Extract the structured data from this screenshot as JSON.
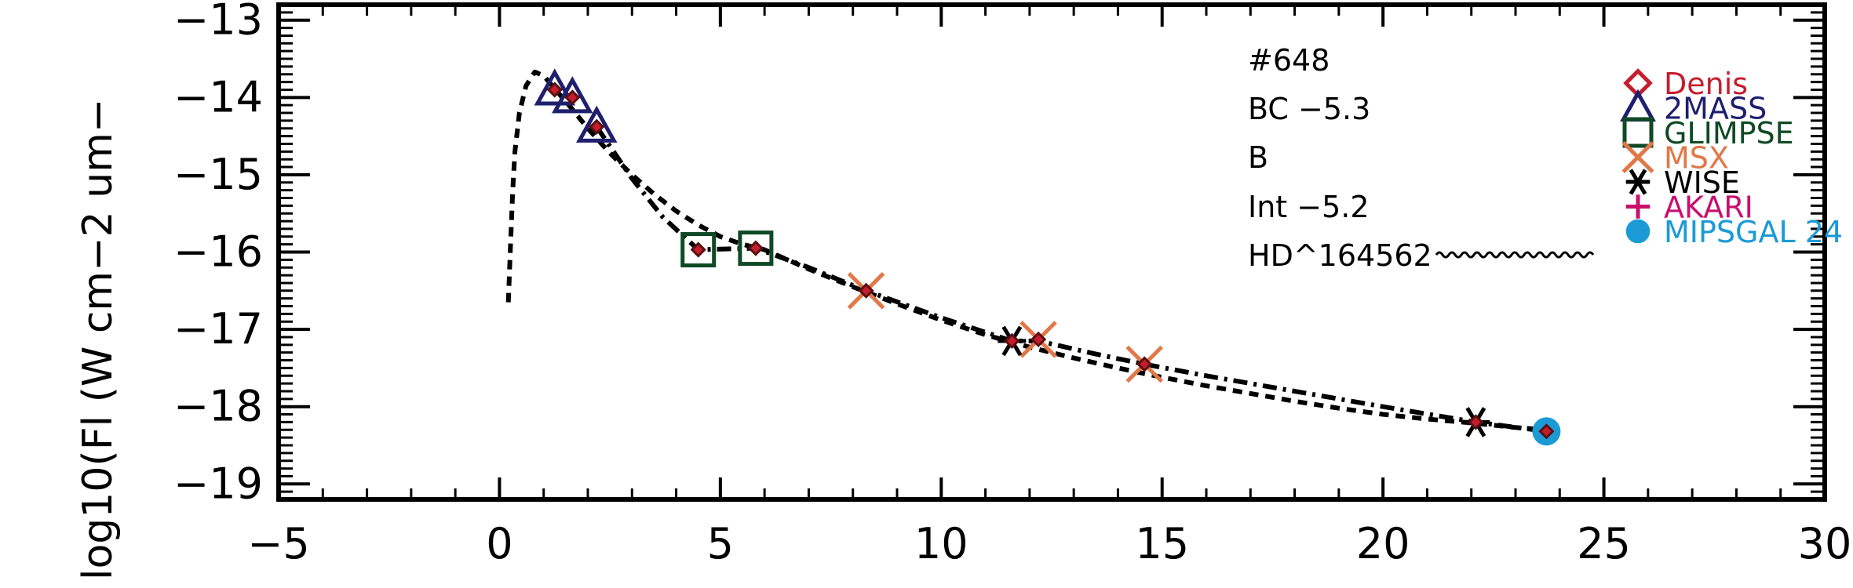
{
  "chart_data": {
    "type": "scatter",
    "title": "",
    "xlabel": "",
    "ylabel": "log10(Fl (W cm−2 um−",
    "xlim": [
      -5,
      30
    ],
    "ylim": [
      -19.2,
      -12.8
    ],
    "x_ticks": [
      -5,
      0,
      5,
      10,
      15,
      20,
      25,
      30
    ],
    "x_tick_labels": [
      "−5",
      "0",
      "5",
      "10",
      "15",
      "20",
      "25",
      "30"
    ],
    "y_ticks": [
      -13,
      -14,
      -15,
      -16,
      -17,
      -18,
      -19
    ],
    "y_tick_labels": [
      "−13",
      "−14",
      "−15",
      "−16",
      "−17",
      "−18",
      "−19"
    ],
    "grid": false,
    "legend_position": "top-right",
    "annotations": [
      {
        "id": "star-id",
        "text": "#648"
      },
      {
        "id": "bc",
        "text": "BC −5.3"
      },
      {
        "id": "band",
        "text": "B"
      },
      {
        "id": "int",
        "text": "Int −5.2"
      },
      {
        "id": "star-name",
        "text": "HD^164562"
      }
    ],
    "model_curve": {
      "style": "dashed",
      "x": [
        0.2,
        0.25,
        0.3,
        0.35,
        0.45,
        0.6,
        0.8,
        1.0,
        1.3,
        1.6,
        2.0,
        2.5,
        3.0,
        3.5,
        4.0,
        4.5,
        5.0,
        5.5,
        6.0,
        7.0,
        8.0,
        9.0,
        10.0,
        11.0,
        12.0,
        13.0,
        14.0,
        15.0,
        16.0,
        17.0,
        18.0,
        19.0,
        20.0,
        21.0,
        22.0,
        23.0,
        23.7
      ],
      "y": [
        -16.65,
        -15.9,
        -15.2,
        -14.7,
        -14.2,
        -13.85,
        -13.67,
        -13.72,
        -13.92,
        -14.12,
        -14.4,
        -14.72,
        -15.0,
        -15.25,
        -15.47,
        -15.65,
        -15.8,
        -15.9,
        -15.97,
        -16.22,
        -16.45,
        -16.67,
        -16.88,
        -17.07,
        -17.23,
        -17.37,
        -17.5,
        -17.62,
        -17.73,
        -17.83,
        -17.93,
        -18.02,
        -18.1,
        -18.16,
        -18.21,
        -18.27,
        -18.3
      ]
    },
    "fit_curve": {
      "style": "dash-dot",
      "x": [
        2.2,
        3.0,
        3.7,
        4.5,
        5.8,
        7.0,
        8.3,
        10.0,
        11.6,
        12.2,
        13.5,
        14.6,
        16.0,
        18.0,
        20.0,
        22.1,
        23.7
      ],
      "y": [
        -14.38,
        -15.05,
        -15.55,
        -15.97,
        -15.95,
        -16.2,
        -16.5,
        -16.85,
        -17.15,
        -17.15,
        -17.32,
        -17.45,
        -17.6,
        -17.8,
        -18.0,
        -18.2,
        -18.32
      ]
    },
    "series": [
      {
        "name": "Denis",
        "marker": "diamond",
        "color": "#c41e2e",
        "x": [
          1.25,
          1.65,
          2.2,
          4.5,
          5.8,
          8.3,
          11.6,
          12.2,
          14.6,
          22.1,
          23.7
        ],
        "y": [
          -13.9,
          -14.0,
          -14.38,
          -15.97,
          -15.95,
          -16.5,
          -17.15,
          -17.13,
          -17.45,
          -18.2,
          -18.32
        ]
      },
      {
        "name": "2MASS",
        "marker": "triangle",
        "color": "#1f1f6e",
        "x": [
          1.25,
          1.65,
          2.2
        ],
        "y": [
          -13.9,
          -14.0,
          -14.38
        ]
      },
      {
        "name": "GLIMPSE",
        "marker": "square",
        "color": "#0f4a24",
        "x": [
          4.5,
          5.8
        ],
        "y": [
          -15.97,
          -15.95
        ]
      },
      {
        "name": "MSX",
        "marker": "x",
        "color": "#e07848",
        "x": [
          8.3,
          12.2,
          14.6
        ],
        "y": [
          -16.5,
          -17.13,
          -17.45
        ]
      },
      {
        "name": "WISE",
        "marker": "asterisk",
        "color": "#000000",
        "x": [
          11.6,
          22.1
        ],
        "y": [
          -17.15,
          -18.2
        ]
      },
      {
        "name": "AKARI",
        "marker": "plus",
        "color": "#c8106e",
        "x": [],
        "y": []
      },
      {
        "name": "MIPSGAL 24",
        "marker": "circle",
        "color": "#1b9ad6",
        "x": [
          23.7
        ],
        "y": [
          -18.32
        ]
      }
    ]
  }
}
